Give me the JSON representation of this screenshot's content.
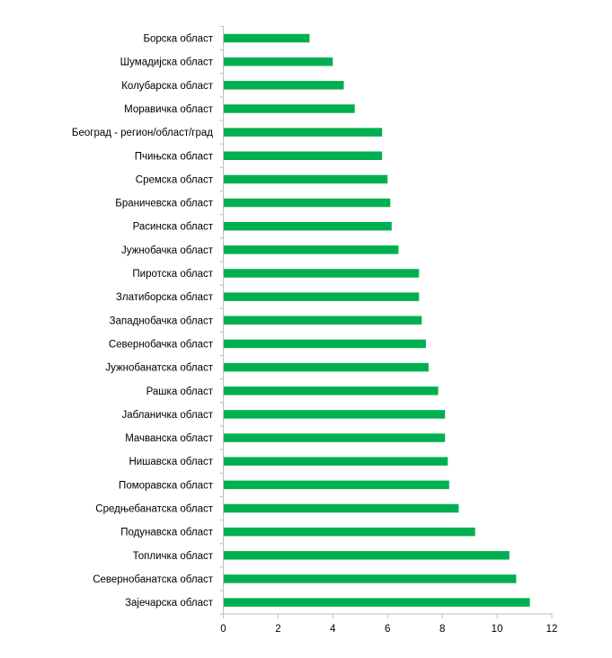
{
  "chart_data": {
    "type": "bar",
    "orientation": "horizontal",
    "categories": [
      "Борска област",
      "Шумадијска област",
      "Колубарска област",
      "Моравичка област",
      "Београд - регион/област/град",
      "Пчињска област",
      "Сремска област",
      "Браничевска област",
      "Расинска област",
      "Јужнобачка област",
      "Пиротска област",
      "Златиборска област",
      "Западнобачка област",
      "Севернобачка област",
      "Јужнобанатска област",
      "Рашка област",
      "Јабланичка област",
      "Мачванска област",
      "Нишавска област",
      "Поморавска област",
      "Средњебанатска област",
      "Подунавска област",
      "Топличка област",
      "Севернобанатска област",
      "Зајечарска област"
    ],
    "values": [
      3.15,
      4.0,
      4.4,
      4.8,
      5.8,
      5.8,
      6.0,
      6.1,
      6.15,
      6.4,
      7.15,
      7.15,
      7.25,
      7.4,
      7.5,
      7.85,
      8.1,
      8.1,
      8.2,
      8.25,
      8.6,
      9.2,
      10.45,
      10.7,
      11.2
    ],
    "xlim": [
      0,
      12
    ],
    "xticks": [
      "0",
      "2",
      "4",
      "6",
      "8",
      "10",
      "12"
    ],
    "bar_color": "#00B050",
    "axis_color": "#BFBFBF",
    "grid": false,
    "legend": "none"
  }
}
